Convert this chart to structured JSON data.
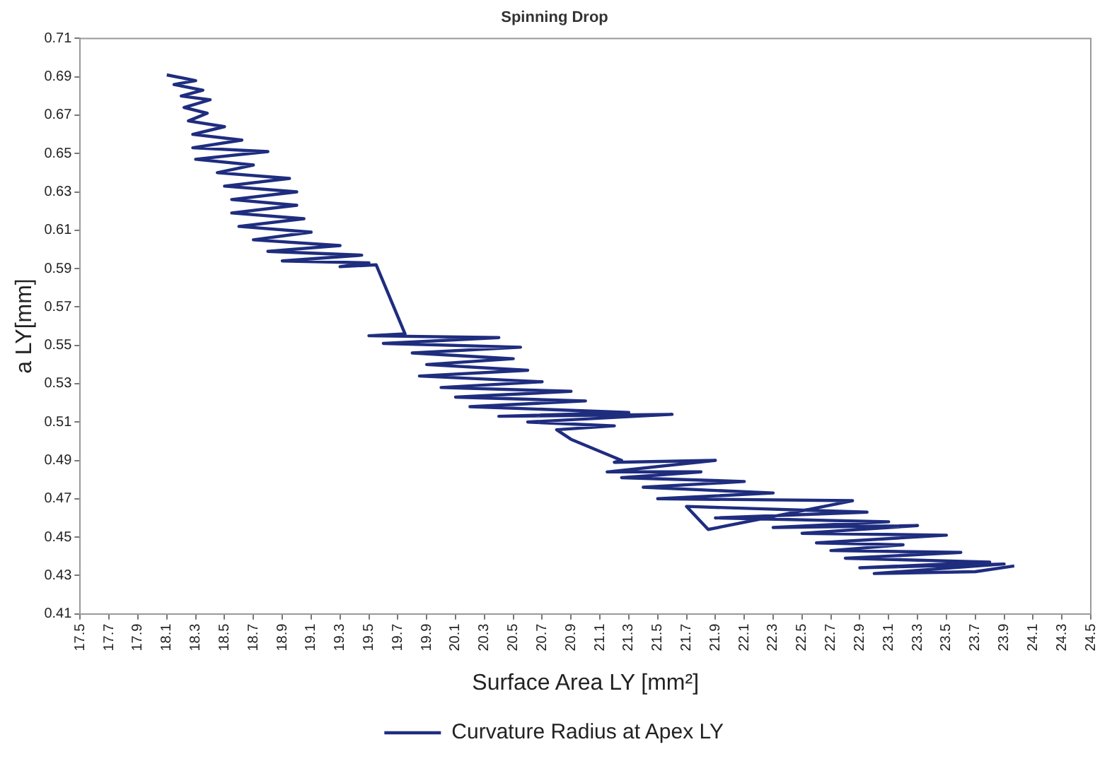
{
  "chart_data": {
    "type": "line",
    "title": "Spinning Drop",
    "xlabel": "Surface Area LY [mm²]",
    "ylabel": "a LY[mm]",
    "x": [
      18.1,
      18.3,
      18.15,
      18.35,
      18.2,
      18.4,
      18.22,
      18.38,
      18.25,
      18.5,
      18.28,
      18.62,
      18.28,
      18.8,
      18.3,
      18.7,
      18.45,
      18.95,
      18.5,
      19.0,
      18.55,
      19.0,
      18.55,
      19.05,
      18.6,
      19.1,
      18.7,
      19.3,
      18.8,
      19.45,
      18.9,
      19.5,
      19.3,
      19.55,
      19.75,
      19.5,
      20.4,
      19.6,
      20.55,
      19.8,
      20.5,
      19.9,
      20.6,
      19.85,
      20.7,
      20.0,
      20.9,
      20.1,
      21.0,
      20.2,
      21.3,
      20.4,
      21.6,
      20.6,
      21.2,
      20.8,
      20.9,
      21.25,
      21.2,
      21.9,
      21.15,
      21.8,
      21.25,
      22.1,
      21.4,
      22.3,
      21.5,
      22.85,
      21.85,
      21.7,
      22.95,
      21.9,
      23.1,
      22.3,
      23.3,
      22.5,
      23.5,
      22.6,
      23.2,
      22.7,
      23.6,
      22.8,
      23.8,
      22.9,
      23.9,
      23.0,
      23.7,
      23.97
    ],
    "series": [
      {
        "name": "Curvature Radius at Apex LY",
        "color": "#1f2d7f",
        "values": [
          0.691,
          0.688,
          0.686,
          0.683,
          0.68,
          0.678,
          0.674,
          0.671,
          0.667,
          0.664,
          0.66,
          0.657,
          0.653,
          0.651,
          0.647,
          0.644,
          0.64,
          0.637,
          0.633,
          0.63,
          0.626,
          0.623,
          0.619,
          0.616,
          0.612,
          0.609,
          0.605,
          0.602,
          0.599,
          0.597,
          0.594,
          0.593,
          0.591,
          0.592,
          0.556,
          0.555,
          0.554,
          0.551,
          0.549,
          0.546,
          0.543,
          0.54,
          0.537,
          0.534,
          0.531,
          0.528,
          0.526,
          0.523,
          0.521,
          0.518,
          0.515,
          0.513,
          0.514,
          0.51,
          0.508,
          0.506,
          0.501,
          0.49,
          0.489,
          0.49,
          0.484,
          0.484,
          0.481,
          0.479,
          0.476,
          0.473,
          0.47,
          0.469,
          0.454,
          0.466,
          0.463,
          0.46,
          0.458,
          0.455,
          0.456,
          0.452,
          0.451,
          0.447,
          0.446,
          0.443,
          0.442,
          0.439,
          0.437,
          0.434,
          0.436,
          0.431,
          0.432,
          0.435
        ]
      }
    ],
    "xlim": [
      17.5,
      24.5
    ],
    "xticks": [
      17.5,
      17.7,
      17.9,
      18.1,
      18.3,
      18.5,
      18.7,
      18.9,
      19.1,
      19.3,
      19.5,
      19.7,
      19.9,
      20.1,
      20.3,
      20.5,
      20.7,
      20.9,
      21.1,
      21.3,
      21.5,
      21.7,
      21.9,
      22.1,
      22.3,
      22.5,
      22.7,
      22.9,
      23.1,
      23.3,
      23.5,
      23.7,
      23.9,
      24.1,
      24.3,
      24.5
    ],
    "ylim": [
      0.41,
      0.71
    ],
    "yticks": [
      0.41,
      0.43,
      0.45,
      0.47,
      0.49,
      0.51,
      0.53,
      0.55,
      0.57,
      0.59,
      0.61,
      0.63,
      0.65,
      0.67,
      0.69,
      0.71
    ],
    "legend": "bottom",
    "marker": "none",
    "line_style": "solid"
  }
}
